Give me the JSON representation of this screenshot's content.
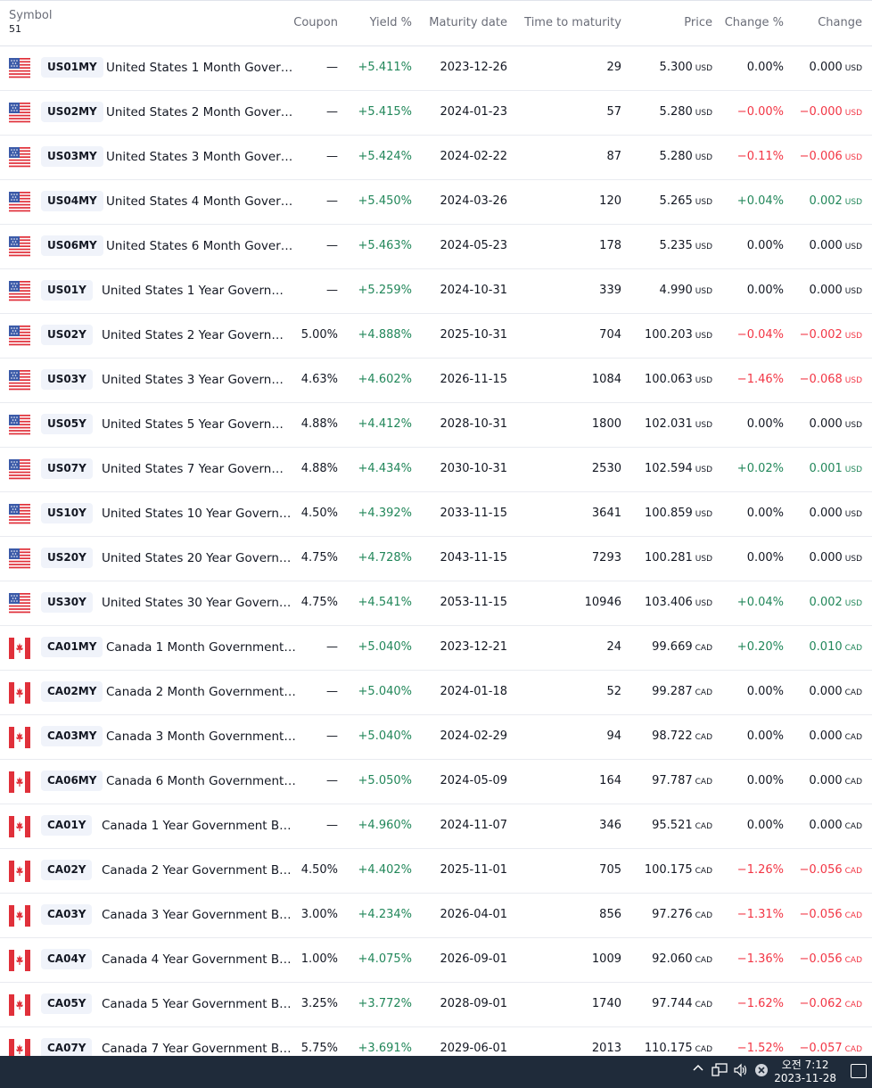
{
  "header": {
    "symbol": "Symbol",
    "count": "51",
    "coupon": "Coupon",
    "yield": "Yield %",
    "maturity": "Maturity date",
    "ttm": "Time to maturity",
    "price": "Price",
    "change_pct": "Change %",
    "change": "Change"
  },
  "rows": [
    {
      "flag": "us-flag-icon",
      "sym": "US01MY",
      "name": "United States 1 Month Gover…",
      "coupon": "—",
      "yield": "+5.411%",
      "mat": "2023-12-26",
      "ttm": "29",
      "price": "5.300",
      "cur": "USD",
      "chp": "0.00%",
      "chg": "0.000",
      "dir": "flat"
    },
    {
      "flag": "us-flag-icon",
      "sym": "US02MY",
      "name": "United States 2 Month Gover…",
      "coupon": "—",
      "yield": "+5.415%",
      "mat": "2024-01-23",
      "ttm": "57",
      "price": "5.280",
      "cur": "USD",
      "chp": "−0.00%",
      "chg": "−0.000",
      "dir": "neg"
    },
    {
      "flag": "us-flag-icon",
      "sym": "US03MY",
      "name": "United States 3 Month Gover…",
      "coupon": "—",
      "yield": "+5.424%",
      "mat": "2024-02-22",
      "ttm": "87",
      "price": "5.280",
      "cur": "USD",
      "chp": "−0.11%",
      "chg": "−0.006",
      "dir": "neg"
    },
    {
      "flag": "us-flag-icon",
      "sym": "US04MY",
      "name": "United States 4 Month Gover…",
      "coupon": "—",
      "yield": "+5.450%",
      "mat": "2024-03-26",
      "ttm": "120",
      "price": "5.265",
      "cur": "USD",
      "chp": "+0.04%",
      "chg": "0.002",
      "dir": "pos"
    },
    {
      "flag": "us-flag-icon",
      "sym": "US06MY",
      "name": "United States 6 Month Gover…",
      "coupon": "—",
      "yield": "+5.463%",
      "mat": "2024-05-23",
      "ttm": "178",
      "price": "5.235",
      "cur": "USD",
      "chp": "0.00%",
      "chg": "0.000",
      "dir": "flat"
    },
    {
      "flag": "us-flag-icon",
      "sym": "US01Y",
      "name": "United States 1 Year Govern…",
      "coupon": "—",
      "yield": "+5.259%",
      "mat": "2024-10-31",
      "ttm": "339",
      "price": "4.990",
      "cur": "USD",
      "chp": "0.00%",
      "chg": "0.000",
      "dir": "flat"
    },
    {
      "flag": "us-flag-icon",
      "sym": "US02Y",
      "name": "United States 2 Year Govern…",
      "coupon": "5.00%",
      "yield": "+4.888%",
      "mat": "2025-10-31",
      "ttm": "704",
      "price": "100.203",
      "cur": "USD",
      "chp": "−0.04%",
      "chg": "−0.002",
      "dir": "neg"
    },
    {
      "flag": "us-flag-icon",
      "sym": "US03Y",
      "name": "United States 3 Year Govern…",
      "coupon": "4.63%",
      "yield": "+4.602%",
      "mat": "2026-11-15",
      "ttm": "1084",
      "price": "100.063",
      "cur": "USD",
      "chp": "−1.46%",
      "chg": "−0.068",
      "dir": "neg"
    },
    {
      "flag": "us-flag-icon",
      "sym": "US05Y",
      "name": "United States 5 Year Govern…",
      "coupon": "4.88%",
      "yield": "+4.412%",
      "mat": "2028-10-31",
      "ttm": "1800",
      "price": "102.031",
      "cur": "USD",
      "chp": "0.00%",
      "chg": "0.000",
      "dir": "flat"
    },
    {
      "flag": "us-flag-icon",
      "sym": "US07Y",
      "name": "United States 7 Year Govern…",
      "coupon": "4.88%",
      "yield": "+4.434%",
      "mat": "2030-10-31",
      "ttm": "2530",
      "price": "102.594",
      "cur": "USD",
      "chp": "+0.02%",
      "chg": "0.001",
      "dir": "pos"
    },
    {
      "flag": "us-flag-icon",
      "sym": "US10Y",
      "name": "United States 10 Year Govern…",
      "coupon": "4.50%",
      "yield": "+4.392%",
      "mat": "2033-11-15",
      "ttm": "3641",
      "price": "100.859",
      "cur": "USD",
      "chp": "0.00%",
      "chg": "0.000",
      "dir": "flat"
    },
    {
      "flag": "us-flag-icon",
      "sym": "US20Y",
      "name": "United States 20 Year Govern…",
      "coupon": "4.75%",
      "yield": "+4.728%",
      "mat": "2043-11-15",
      "ttm": "7293",
      "price": "100.281",
      "cur": "USD",
      "chp": "0.00%",
      "chg": "0.000",
      "dir": "flat"
    },
    {
      "flag": "us-flag-icon",
      "sym": "US30Y",
      "name": "United States 30 Year Govern…",
      "coupon": "4.75%",
      "yield": "+4.541%",
      "mat": "2053-11-15",
      "ttm": "10946",
      "price": "103.406",
      "cur": "USD",
      "chp": "+0.04%",
      "chg": "0.002",
      "dir": "pos"
    },
    {
      "flag": "ca-flag-icon",
      "sym": "CA01MY",
      "name": "Canada 1 Month Government…",
      "coupon": "—",
      "yield": "+5.040%",
      "mat": "2023-12-21",
      "ttm": "24",
      "price": "99.669",
      "cur": "CAD",
      "chp": "+0.20%",
      "chg": "0.010",
      "dir": "pos"
    },
    {
      "flag": "ca-flag-icon",
      "sym": "CA02MY",
      "name": "Canada 2 Month Government…",
      "coupon": "—",
      "yield": "+5.040%",
      "mat": "2024-01-18",
      "ttm": "52",
      "price": "99.287",
      "cur": "CAD",
      "chp": "0.00%",
      "chg": "0.000",
      "dir": "flat"
    },
    {
      "flag": "ca-flag-icon",
      "sym": "CA03MY",
      "name": "Canada 3 Month Government…",
      "coupon": "—",
      "yield": "+5.040%",
      "mat": "2024-02-29",
      "ttm": "94",
      "price": "98.722",
      "cur": "CAD",
      "chp": "0.00%",
      "chg": "0.000",
      "dir": "flat"
    },
    {
      "flag": "ca-flag-icon",
      "sym": "CA06MY",
      "name": "Canada 6 Month Government…",
      "coupon": "—",
      "yield": "+5.050%",
      "mat": "2024-05-09",
      "ttm": "164",
      "price": "97.787",
      "cur": "CAD",
      "chp": "0.00%",
      "chg": "0.000",
      "dir": "flat"
    },
    {
      "flag": "ca-flag-icon",
      "sym": "CA01Y",
      "name": "Canada 1 Year Government B…",
      "coupon": "—",
      "yield": "+4.960%",
      "mat": "2024-11-07",
      "ttm": "346",
      "price": "95.521",
      "cur": "CAD",
      "chp": "0.00%",
      "chg": "0.000",
      "dir": "flat"
    },
    {
      "flag": "ca-flag-icon",
      "sym": "CA02Y",
      "name": "Canada 2 Year Government B…",
      "coupon": "4.50%",
      "yield": "+4.402%",
      "mat": "2025-11-01",
      "ttm": "705",
      "price": "100.175",
      "cur": "CAD",
      "chp": "−1.26%",
      "chg": "−0.056",
      "dir": "neg"
    },
    {
      "flag": "ca-flag-icon",
      "sym": "CA03Y",
      "name": "Canada 3 Year Government B…",
      "coupon": "3.00%",
      "yield": "+4.234%",
      "mat": "2026-04-01",
      "ttm": "856",
      "price": "97.276",
      "cur": "CAD",
      "chp": "−1.31%",
      "chg": "−0.056",
      "dir": "neg"
    },
    {
      "flag": "ca-flag-icon",
      "sym": "CA04Y",
      "name": "Canada 4 Year Government B…",
      "coupon": "1.00%",
      "yield": "+4.075%",
      "mat": "2026-09-01",
      "ttm": "1009",
      "price": "92.060",
      "cur": "CAD",
      "chp": "−1.36%",
      "chg": "−0.056",
      "dir": "neg"
    },
    {
      "flag": "ca-flag-icon",
      "sym": "CA05Y",
      "name": "Canada 5 Year Government B…",
      "coupon": "3.25%",
      "yield": "+3.772%",
      "mat": "2028-09-01",
      "ttm": "1740",
      "price": "97.744",
      "cur": "CAD",
      "chp": "−1.62%",
      "chg": "−0.062",
      "dir": "neg"
    },
    {
      "flag": "ca-flag-icon",
      "sym": "CA07Y",
      "name": "Canada 7 Year Government B…",
      "coupon": "5.75%",
      "yield": "+3.691%",
      "mat": "2029-06-01",
      "ttm": "2013",
      "price": "110.175",
      "cur": "CAD",
      "chp": "−1.52%",
      "chg": "−0.057",
      "dir": "neg"
    }
  ],
  "taskbar": {
    "time": "오전 7:12",
    "date": "2023-11-28",
    "icons": [
      "chevron-up-icon",
      "network-icon",
      "volume-icon",
      "close-circle-icon"
    ]
  },
  "colors": {
    "positive": "#22875a",
    "negative": "#f23645",
    "badge_bg": "#f0f3fa",
    "taskbar_bg": "#1f2b3a"
  }
}
